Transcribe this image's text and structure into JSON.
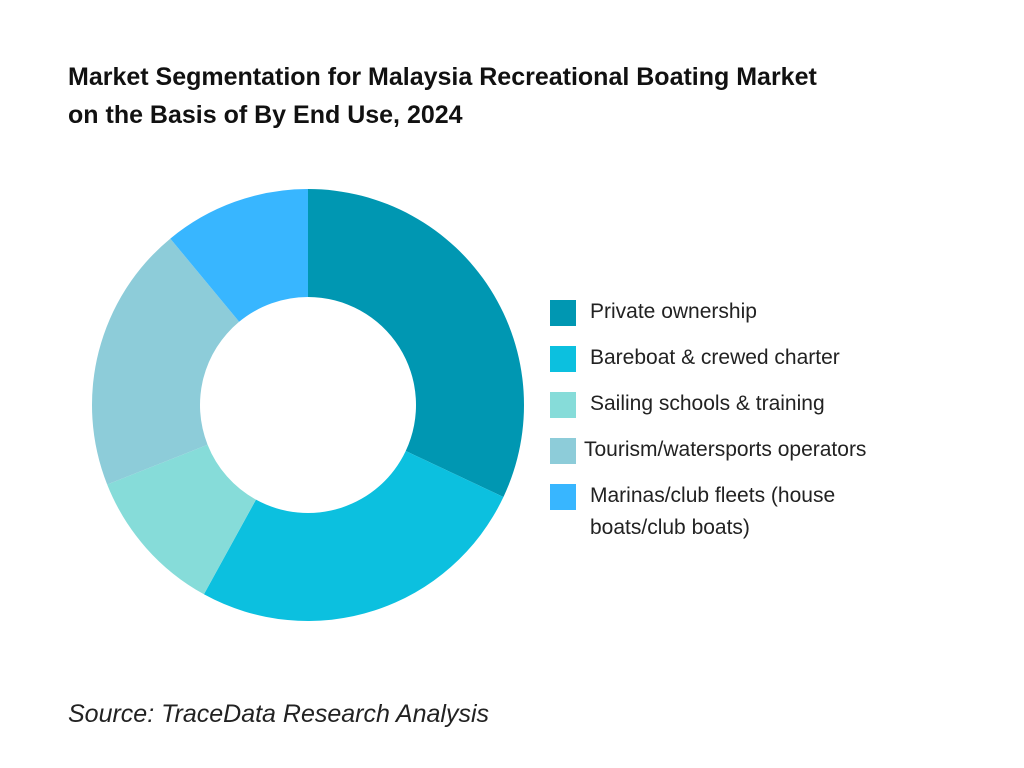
{
  "title_lines": [
    "Market Segmentation for Malaysia Recreational Boating Market",
    "on the Basis of By End Use, 2024"
  ],
  "source": "Source: TraceData Research Analysis",
  "chart_data": {
    "type": "pie",
    "variant": "donut",
    "title": "Market Segmentation for Malaysia Recreational Boating Market on the Basis of By End Use, 2024",
    "categories": [
      "Private ownership",
      "Bareboat & crewed charter",
      "Sailing schools & training",
      "Tourism/watersports operators",
      "Marinas/club fleets (house boats/club boats)"
    ],
    "values": [
      32,
      26,
      11,
      20,
      11
    ],
    "value_unit": "%",
    "colors": [
      "#0097B2",
      "#0CC0DF",
      "#86DCD9",
      "#8DCCD9",
      "#38B6FF"
    ],
    "start_angle": "12 o'clock",
    "direction": "clockwise",
    "legend_position": "right"
  }
}
